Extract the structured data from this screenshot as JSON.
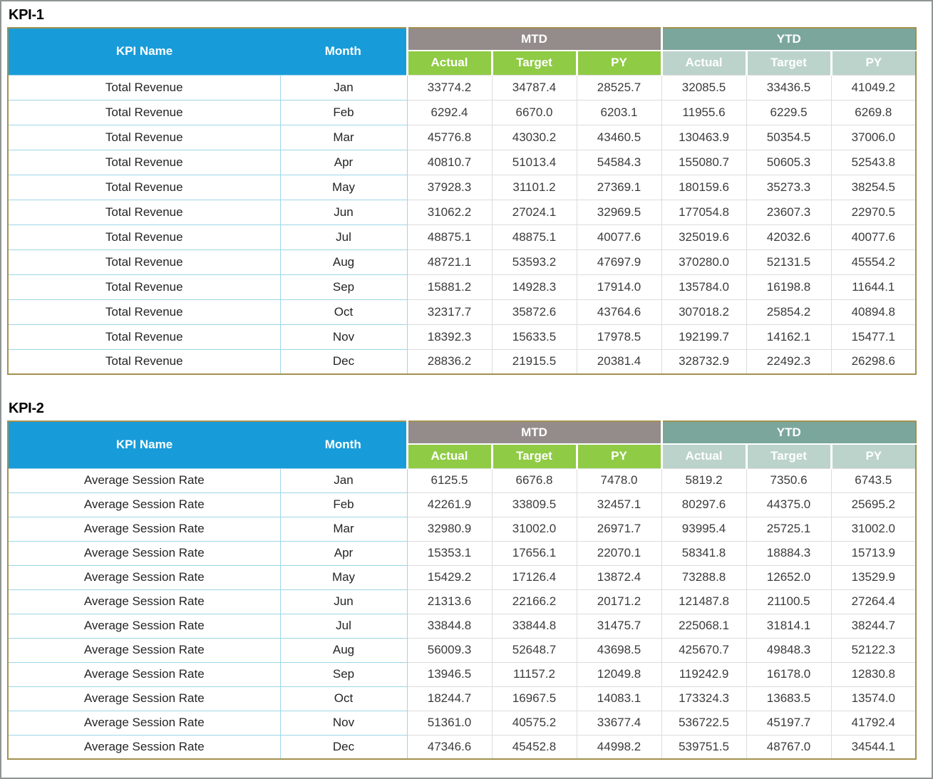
{
  "colors": {
    "header_blue": "#189cd9",
    "mtd_group_taupe": "#948c8a",
    "ytd_group_teal": "#7ba69c",
    "mtd_sub_green": "#8fcb44",
    "ytd_sub_lightteal": "#bcd3cc",
    "grid_cyan": "#9ed5e6",
    "grid_gray": "#dcdcdc",
    "table_outline_tan": "#a2914f",
    "outer_frame_gray": "#8f9594"
  },
  "headers": {
    "kpi_name": "KPI Name",
    "month": "Month",
    "mtd": "MTD",
    "ytd": "YTD",
    "sub": [
      "Actual",
      "Target",
      "PY"
    ]
  },
  "tables": [
    {
      "title": "KPI-1",
      "kpi_name": "Total Revenue",
      "rows": [
        {
          "month": "Jan",
          "values": [
            "33774.2",
            "34787.4",
            "28525.7",
            "32085.5",
            "33436.5",
            "41049.2"
          ]
        },
        {
          "month": "Feb",
          "values": [
            "6292.4",
            "6670.0",
            "6203.1",
            "11955.6",
            "6229.5",
            "6269.8"
          ]
        },
        {
          "month": "Mar",
          "values": [
            "45776.8",
            "43030.2",
            "43460.5",
            "130463.9",
            "50354.5",
            "37006.0"
          ]
        },
        {
          "month": "Apr",
          "values": [
            "40810.7",
            "51013.4",
            "54584.3",
            "155080.7",
            "50605.3",
            "52543.8"
          ]
        },
        {
          "month": "May",
          "values": [
            "37928.3",
            "31101.2",
            "27369.1",
            "180159.6",
            "35273.3",
            "38254.5"
          ]
        },
        {
          "month": "Jun",
          "values": [
            "31062.2",
            "27024.1",
            "32969.5",
            "177054.8",
            "23607.3",
            "22970.5"
          ]
        },
        {
          "month": "Jul",
          "values": [
            "48875.1",
            "48875.1",
            "40077.6",
            "325019.6",
            "42032.6",
            "40077.6"
          ]
        },
        {
          "month": "Aug",
          "values": [
            "48721.1",
            "53593.2",
            "47697.9",
            "370280.0",
            "52131.5",
            "45554.2"
          ]
        },
        {
          "month": "Sep",
          "values": [
            "15881.2",
            "14928.3",
            "17914.0",
            "135784.0",
            "16198.8",
            "11644.1"
          ]
        },
        {
          "month": "Oct",
          "values": [
            "32317.7",
            "35872.6",
            "43764.6",
            "307018.2",
            "25854.2",
            "40894.8"
          ]
        },
        {
          "month": "Nov",
          "values": [
            "18392.3",
            "15633.5",
            "17978.5",
            "192199.7",
            "14162.1",
            "15477.1"
          ]
        },
        {
          "month": "Dec",
          "values": [
            "28836.2",
            "21915.5",
            "20381.4",
            "328732.9",
            "22492.3",
            "26298.6"
          ]
        }
      ]
    },
    {
      "title": "KPI-2",
      "kpi_name": "Average Session Rate",
      "rows": [
        {
          "month": "Jan",
          "values": [
            "6125.5",
            "6676.8",
            "7478.0",
            "5819.2",
            "7350.6",
            "6743.5"
          ]
        },
        {
          "month": "Feb",
          "values": [
            "42261.9",
            "33809.5",
            "32457.1",
            "80297.6",
            "44375.0",
            "25695.2"
          ]
        },
        {
          "month": "Mar",
          "values": [
            "32980.9",
            "31002.0",
            "26971.7",
            "93995.4",
            "25725.1",
            "31002.0"
          ]
        },
        {
          "month": "Apr",
          "values": [
            "15353.1",
            "17656.1",
            "22070.1",
            "58341.8",
            "18884.3",
            "15713.9"
          ]
        },
        {
          "month": "May",
          "values": [
            "15429.2",
            "17126.4",
            "13872.4",
            "73288.8",
            "12652.0",
            "13529.9"
          ]
        },
        {
          "month": "Jun",
          "values": [
            "21313.6",
            "22166.2",
            "20171.2",
            "121487.8",
            "21100.5",
            "27264.4"
          ]
        },
        {
          "month": "Jul",
          "values": [
            "33844.8",
            "33844.8",
            "31475.7",
            "225068.1",
            "31814.1",
            "38244.7"
          ]
        },
        {
          "month": "Aug",
          "values": [
            "56009.3",
            "52648.7",
            "43698.5",
            "425670.7",
            "49848.3",
            "52122.3"
          ]
        },
        {
          "month": "Sep",
          "values": [
            "13946.5",
            "11157.2",
            "12049.8",
            "119242.9",
            "16178.0",
            "12830.8"
          ]
        },
        {
          "month": "Oct",
          "values": [
            "18244.7",
            "16967.5",
            "14083.1",
            "173324.3",
            "13683.5",
            "13574.0"
          ]
        },
        {
          "month": "Nov",
          "values": [
            "51361.0",
            "40575.2",
            "33677.4",
            "536722.5",
            "45197.7",
            "41792.4"
          ]
        },
        {
          "month": "Dec",
          "values": [
            "47346.6",
            "45452.8",
            "44998.2",
            "539751.5",
            "48767.0",
            "34544.1"
          ]
        }
      ]
    }
  ]
}
